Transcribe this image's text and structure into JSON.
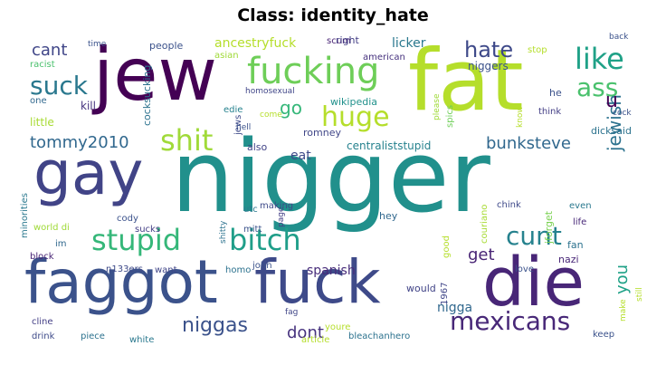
{
  "title": "Class: identity_hate",
  "words": [
    {
      "text": "nigger",
      "color": "#21908c"
    },
    {
      "text": "fat",
      "color": "#b5de2b"
    },
    {
      "text": "jew",
      "color": "#440154"
    },
    {
      "text": "faggot",
      "color": "#3b528b"
    },
    {
      "text": "fuck",
      "color": "#3e4a89"
    },
    {
      "text": "die",
      "color": "#482677"
    },
    {
      "text": "gay",
      "color": "#414487"
    },
    {
      "text": "fucking",
      "color": "#6ece58"
    },
    {
      "text": "stupid",
      "color": "#35b779"
    },
    {
      "text": "bitch",
      "color": "#1f9e89"
    },
    {
      "text": "huge",
      "color": "#b5de2b"
    },
    {
      "text": "shit",
      "color": "#a0da39"
    },
    {
      "text": "mexicans",
      "color": "#482878"
    },
    {
      "text": "cunt",
      "color": "#26828e"
    },
    {
      "text": "like",
      "color": "#1fa187"
    },
    {
      "text": "ass",
      "color": "#4ac16d"
    },
    {
      "text": "suck",
      "color": "#2a788e"
    },
    {
      "text": "hate",
      "color": "#3e4989"
    },
    {
      "text": "niggas",
      "color": "#3b528b"
    },
    {
      "text": "jewish",
      "color": "#2c728e"
    },
    {
      "text": "bunksteve",
      "color": "#31688e"
    },
    {
      "text": "tommy2010",
      "color": "#31688e"
    },
    {
      "text": "cant",
      "color": "#404688"
    },
    {
      "text": "go",
      "color": "#35b779"
    },
    {
      "text": "u",
      "color": "#440154"
    },
    {
      "text": "you",
      "color": "#1fa187"
    },
    {
      "text": "get",
      "color": "#482475"
    },
    {
      "text": "dont",
      "color": "#46327e"
    },
    {
      "text": "spanish",
      "color": "#472c7a"
    },
    {
      "text": "nigga",
      "color": "#31688e"
    },
    {
      "text": "ancestryfuck",
      "color": "#b5de2b"
    },
    {
      "text": "licker",
      "color": "#2a788e"
    },
    {
      "text": "niggers",
      "color": "#3b528b"
    },
    {
      "text": "centraliststupid",
      "color": "#26828e"
    },
    {
      "text": "wikipedia",
      "color": "#21918c"
    },
    {
      "text": "romney",
      "color": "#404688"
    },
    {
      "text": "eat",
      "color": "#3e4a89"
    },
    {
      "text": "kill",
      "color": "#46337f"
    },
    {
      "text": "little",
      "color": "#a8db34"
    },
    {
      "text": "racist",
      "color": "#4ac16d"
    },
    {
      "text": "one",
      "color": "#31688e"
    },
    {
      "text": "people",
      "color": "#3b528b"
    },
    {
      "text": "scum",
      "color": "#482475"
    },
    {
      "text": "right",
      "color": "#433e85"
    },
    {
      "text": "american",
      "color": "#46327e"
    },
    {
      "text": "homosexual",
      "color": "#404688"
    },
    {
      "text": "edie",
      "color": "#26828e"
    },
    {
      "text": "asian",
      "color": "#a0da39"
    },
    {
      "text": "jews",
      "color": "#3e4a89"
    },
    {
      "text": "also",
      "color": "#414487"
    },
    {
      "text": "dicksaid",
      "color": "#2c728e"
    },
    {
      "text": "stop",
      "color": "#b5de2b"
    },
    {
      "text": "think",
      "color": "#433e85"
    },
    {
      "text": "he",
      "color": "#3b528b"
    },
    {
      "text": "cocksucking",
      "color": "#2c728e"
    },
    {
      "text": "spics",
      "color": "#6ece58"
    },
    {
      "text": "please",
      "color": "#a0da39"
    },
    {
      "text": "utc",
      "color": "#2a788e"
    },
    {
      "text": "mitt",
      "color": "#3b528b"
    },
    {
      "text": "making",
      "color": "#3e4a89"
    },
    {
      "text": "page",
      "color": "#433e85"
    },
    {
      "text": "hey",
      "color": "#31688e"
    },
    {
      "text": "chink",
      "color": "#3e4989"
    },
    {
      "text": "couriano",
      "color": "#a8db34"
    },
    {
      "text": "jforget",
      "color": "#7ad151"
    },
    {
      "text": "even",
      "color": "#2a788e"
    },
    {
      "text": "life",
      "color": "#482878"
    },
    {
      "text": "fan",
      "color": "#2c728e"
    },
    {
      "text": "nazi",
      "color": "#482677"
    },
    {
      "text": "love",
      "color": "#3b528b"
    },
    {
      "text": "good",
      "color": "#b5de2b"
    },
    {
      "text": "would",
      "color": "#414487"
    },
    {
      "text": "1967",
      "color": "#404688"
    },
    {
      "text": "john",
      "color": "#3b528b"
    },
    {
      "text": "homo",
      "color": "#2c728e"
    },
    {
      "text": "want",
      "color": "#404688"
    },
    {
      "text": "n133ers",
      "color": "#3e4a89"
    },
    {
      "text": "sucks",
      "color": "#433e85"
    },
    {
      "text": "cody",
      "color": "#3b528b"
    },
    {
      "text": "block",
      "color": "#482475"
    },
    {
      "text": "im",
      "color": "#31688e"
    },
    {
      "text": "minorities",
      "color": "#2a788e"
    },
    {
      "text": "world di",
      "color": "#a0da39"
    },
    {
      "text": "cline",
      "color": "#433e85"
    },
    {
      "text": "drink",
      "color": "#3e4a89"
    },
    {
      "text": "piece",
      "color": "#2c728e"
    },
    {
      "text": "white",
      "color": "#2a788e"
    },
    {
      "text": "fag",
      "color": "#404688"
    },
    {
      "text": "youre",
      "color": "#b5de2b"
    },
    {
      "text": "article",
      "color": "#b5de2b"
    },
    {
      "text": "bleachanhero",
      "color": "#2c728e"
    },
    {
      "text": "keep",
      "color": "#3b528b"
    },
    {
      "text": "make",
      "color": "#b5de2b"
    },
    {
      "text": "still",
      "color": "#b5de2b"
    },
    {
      "text": "cock",
      "color": "#3b528b"
    },
    {
      "text": "know",
      "color": "#b5de2b"
    },
    {
      "text": "back",
      "color": "#3b528b"
    },
    {
      "text": "time",
      "color": "#3b528b"
    },
    {
      "text": "hell",
      "color": "#3b528b"
    },
    {
      "text": "come",
      "color": "#b5de2b"
    },
    {
      "text": "shitty",
      "color": "#2c728e"
    }
  ]
}
